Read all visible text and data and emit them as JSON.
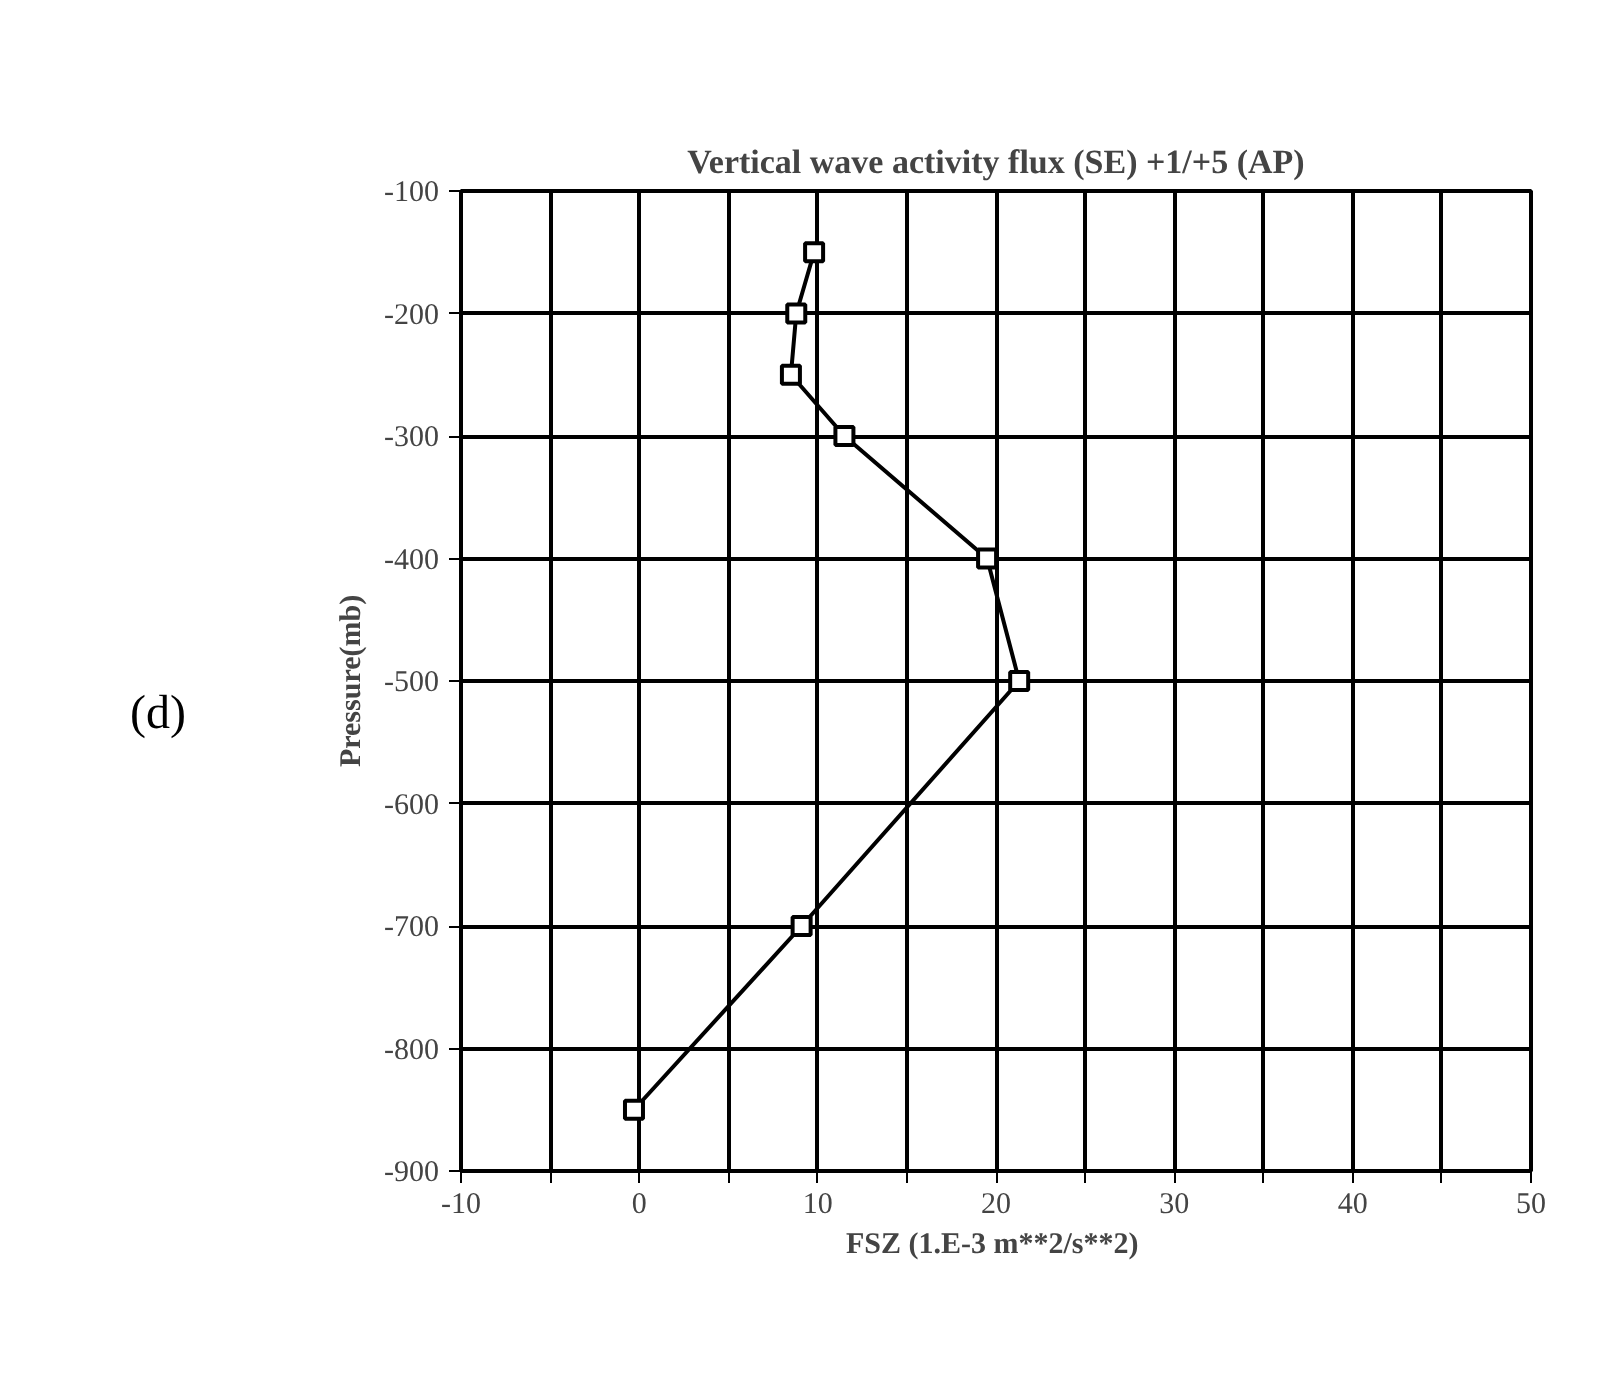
{
  "chart_data": {
    "type": "line",
    "title": "Vertical wave activity flux (SE) +1/+5 (AP)",
    "xlabel": "FSZ (1.E-3  m**2/s**2)",
    "ylabel": "Pressure(mb)",
    "annotations": [
      "(d)"
    ],
    "series": [
      {
        "color": "#000000",
        "x": [
          9.8,
          8.8,
          8.5,
          11.5,
          19.5,
          21.3,
          9.1,
          -0.3
        ],
        "values": [
          -150,
          -200,
          -250,
          -300,
          -400,
          -500,
          -700,
          -850
        ]
      }
    ],
    "xlim": [
      -10,
      50
    ],
    "ylim": [
      -900,
      -100
    ],
    "xticks": [
      -10,
      {
        "value": -5,
        "label": null
      },
      0,
      {
        "value": 5,
        "label": null
      },
      10,
      {
        "value": 15,
        "label": null
      },
      20,
      {
        "value": 25,
        "label": null
      },
      30,
      {
        "value": 35,
        "label": null
      },
      40,
      {
        "value": 45,
        "label": null
      },
      50
    ],
    "yticks": [
      -900,
      -800,
      -700,
      -600,
      -500,
      -400,
      -300,
      -200,
      -100
    ],
    "grid": true,
    "marker": "square",
    "line_style": "solid"
  }
}
